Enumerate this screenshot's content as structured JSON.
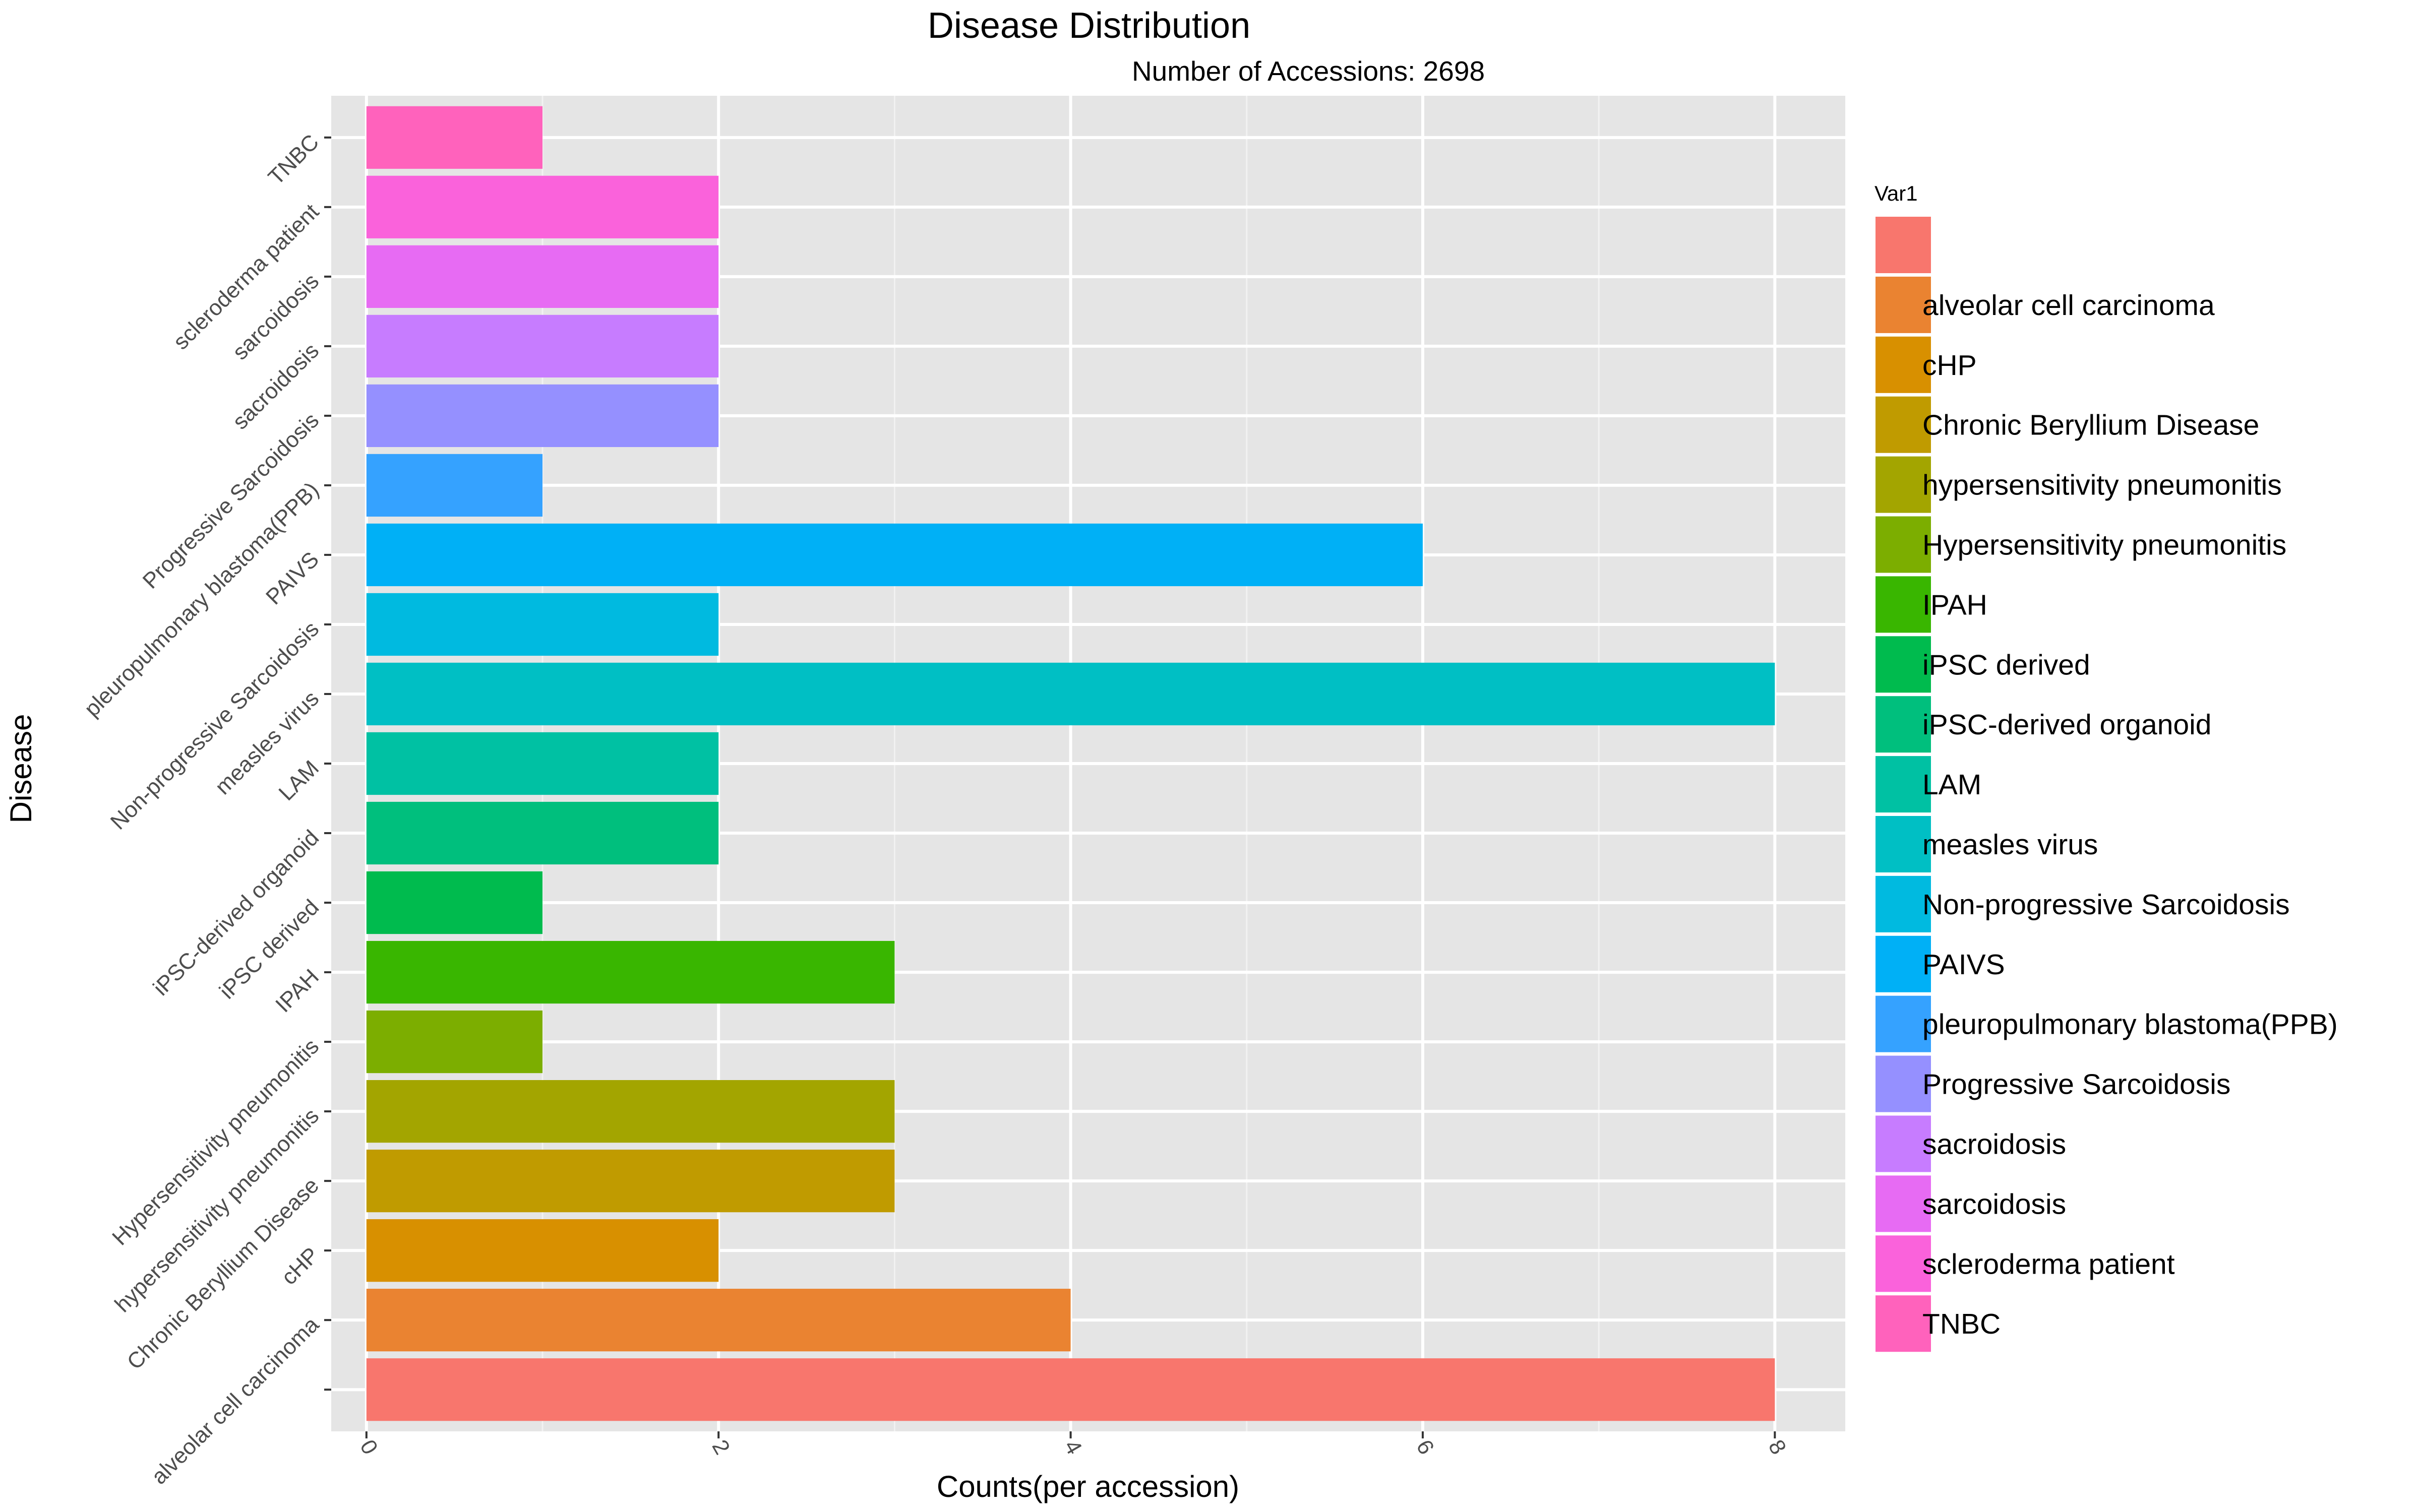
{
  "chart_data": {
    "type": "bar",
    "orientation": "horizontal",
    "title": "Disease Distribution",
    "subtitle": "Number of Accessions: 2698",
    "xlabel": "Counts(per accession)",
    "ylabel": "Disease",
    "xlim": [
      -0.2,
      8.4
    ],
    "x_ticks": [
      0,
      2,
      4,
      6,
      8
    ],
    "x_tick_labels": [
      "0",
      "2",
      "4",
      "6",
      "8"
    ],
    "grid": true,
    "legend_title": "Var1",
    "legend_position": "right",
    "categories": [
      "",
      "alveolar cell carcinoma",
      "cHP",
      "Chronic Beryllium Disease",
      "hypersensitivity pneumonitis",
      "Hypersensitivity pneumonitis",
      "IPAH",
      "iPSC derived",
      "iPSC-derived organoid",
      "LAM",
      "measles virus",
      "Non-progressive Sarcoidosis",
      "PAIVS",
      "pleuropulmonary blastoma(PPB)",
      "Progressive Sarcoidosis",
      "sacroidosis",
      "sarcoidosis",
      "scleroderma patient",
      "TNBC"
    ],
    "values": [
      8,
      4,
      2,
      3,
      3,
      1,
      3,
      1,
      2,
      2,
      8,
      2,
      6,
      1,
      2,
      2,
      2,
      2,
      1
    ],
    "colors": [
      "#F8766D",
      "#EA8331",
      "#D89000",
      "#C09B00",
      "#A3A500",
      "#7CAE00",
      "#39B600",
      "#00BB4E",
      "#00BF7D",
      "#00C1A3",
      "#00BFC4",
      "#00BAE0",
      "#00B0F6",
      "#35A2FF",
      "#9590FF",
      "#C77CFF",
      "#E76BF3",
      "#FA62DB",
      "#FF62BC"
    ]
  }
}
